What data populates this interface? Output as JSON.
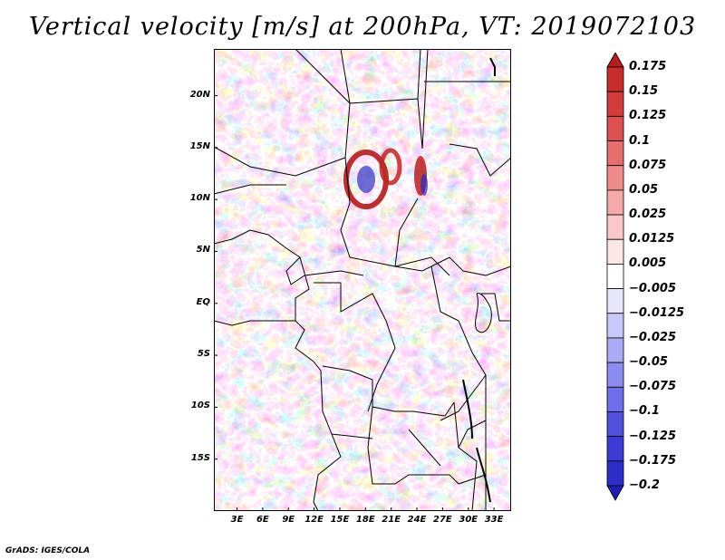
{
  "title": "Vertical velocity [m/s] at 200hPa, VT: 2019072103",
  "footer": "GrADS: IGES/COLA",
  "map": {
    "lat_ticks": [
      "20N",
      "15N",
      "10N",
      "5N",
      "EQ",
      "5S",
      "10S",
      "15S"
    ],
    "lat_values": [
      20,
      15,
      10,
      5,
      0,
      -5,
      -10,
      -15
    ],
    "lon_ticks": [
      "3E",
      "6E",
      "9E",
      "12E",
      "15E",
      "18E",
      "21E",
      "24E",
      "27E",
      "30E",
      "33E"
    ],
    "lon_values": [
      3,
      6,
      9,
      12,
      15,
      18,
      21,
      24,
      27,
      30,
      33
    ],
    "lat_range": [
      -20,
      24.5
    ],
    "lon_range": [
      0.3,
      35
    ]
  },
  "colorbar": {
    "labels": [
      "0.175",
      "0.15",
      "0.125",
      "0.1",
      "0.075",
      "0.05",
      "0.025",
      "0.0125",
      "0.005",
      "−0.005",
      "−0.0125",
      "−0.025",
      "−0.05",
      "−0.075",
      "−0.1",
      "−0.125",
      "−0.175",
      "−0.2"
    ],
    "colors": [
      "#b41e1e",
      "#c82d2d",
      "#d23c3c",
      "#dc5050",
      "#e66e6e",
      "#ee8c8c",
      "#f5aaaa",
      "#fac8c8",
      "#fde6e6",
      "#ffffff",
      "#e6e6fd",
      "#c8c8fa",
      "#aaaaf5",
      "#8c8cee",
      "#6e6ee6",
      "#5050dc",
      "#3c3cd2",
      "#2d2dc8",
      "#1e1eb4"
    ]
  }
}
